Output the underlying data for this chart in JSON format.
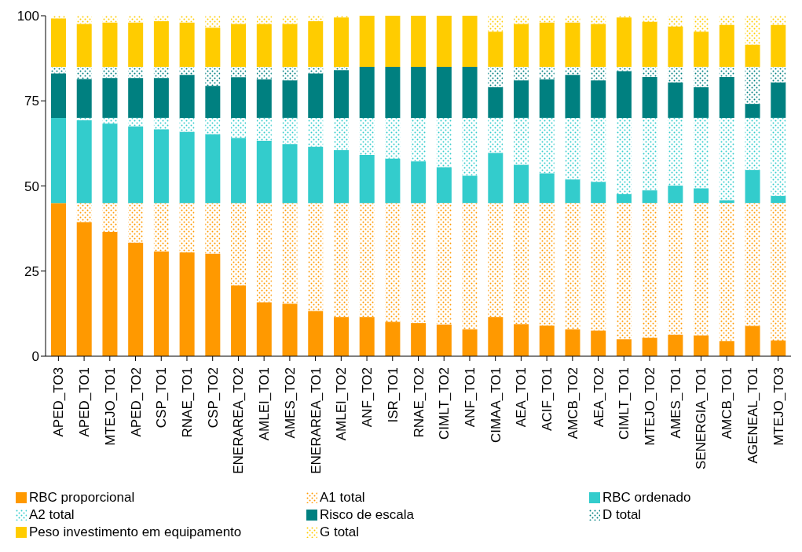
{
  "chart_data": {
    "type": "bar",
    "stacked": true,
    "categories": [
      "APED_TO3",
      "APED_TO1",
      "MTEJO_TO1",
      "APED_TO2",
      "CSP_TO1",
      "RNAE_TO1",
      "CSP_TO2",
      "ENERAREA_TO2",
      "AMLEI_TO1",
      "AMES_TO2",
      "ENERAREA_TO1",
      "AMLEI_TO2",
      "ANF_TO2",
      "ISR_TO1",
      "RNAE_TO2",
      "CIMLT_TO2",
      "ANF_TO1",
      "CIMAA_TO1",
      "AEA_TO1",
      "ACIF_TO1",
      "AMCB_TO2",
      "AEA_TO2",
      "CIMLT_TO1",
      "MTEJO_TO2",
      "AMES_TO1",
      "SENERGIA_TO1",
      "AMCB_TO1",
      "AGENEAL_TO1",
      "MTEJO_TO3"
    ],
    "series": [
      {
        "name": "RBC proporcional",
        "color": "#ff9900",
        "values": [
          45,
          39.4,
          36.5,
          33.3,
          30.8,
          30.5,
          30.1,
          20.8,
          15.8,
          15.4,
          13.3,
          11.5,
          11.5,
          10.1,
          9.7,
          9.3,
          7.9,
          11.5,
          9.4,
          9,
          7.9,
          7.5,
          5,
          5.4,
          6.3,
          6.1,
          4.4,
          8.9,
          4.6
        ]
      },
      {
        "name": "A1 total",
        "color": "#ff9900",
        "values": [
          0,
          5.6,
          8.5,
          11.7,
          14.2,
          14.5,
          14.9,
          24.2,
          29.2,
          29.6,
          31.7,
          33.5,
          33.5,
          34.9,
          35.3,
          35.7,
          37.1,
          33.5,
          35.6,
          36,
          37.1,
          37.5,
          40,
          39.6,
          38.7,
          38.9,
          40.6,
          36.1,
          40.4
        ]
      },
      {
        "name": "RBC ordenado",
        "color": "#33cccc",
        "values": [
          25,
          24.3,
          23.3,
          22.5,
          21.6,
          20.9,
          20.2,
          19.1,
          18.3,
          17.3,
          16.5,
          15.5,
          14.1,
          13,
          12.2,
          10.5,
          8,
          14.7,
          11.2,
          8.7,
          6.9,
          6.2,
          2.6,
          3.7,
          5.1,
          4.3,
          0.8,
          9.7,
          2.1
        ]
      },
      {
        "name": "A2 total",
        "color": "#33cccc",
        "values": [
          0,
          0.7,
          1.7,
          2.5,
          3.4,
          4.1,
          4.8,
          5.9,
          6.7,
          7.7,
          8.5,
          9.5,
          10.9,
          12,
          12.8,
          14.5,
          17,
          10.3,
          13.8,
          16.3,
          18.1,
          18.8,
          22.4,
          21.3,
          19.9,
          20.7,
          24.2,
          15.3,
          22.9
        ]
      },
      {
        "name": "Risco de escala",
        "color": "#008080",
        "values": [
          13,
          11.4,
          11.7,
          11.7,
          11.7,
          12.6,
          9.4,
          11.9,
          11.3,
          11,
          13,
          14,
          15,
          15,
          15,
          15,
          15,
          9,
          11,
          11.3,
          12.6,
          11,
          13.7,
          12,
          10.4,
          9,
          12,
          4.1,
          10.4
        ]
      },
      {
        "name": "D total",
        "color": "#008080",
        "values": [
          2,
          3.6,
          3.3,
          3.3,
          3.3,
          2.4,
          5.6,
          3.1,
          3.7,
          4,
          2,
          1,
          0,
          0,
          0,
          0,
          0,
          6,
          4,
          3.7,
          2.4,
          4,
          1.3,
          3,
          4.6,
          6,
          3,
          10.9,
          4.6
        ]
      },
      {
        "name": "Peso investimento em equipamento",
        "color": "#ffcc00",
        "values": [
          14.2,
          12.6,
          13,
          13,
          13.4,
          13,
          11.5,
          12.6,
          12.6,
          12.6,
          13.4,
          14.5,
          15,
          15,
          15,
          15,
          15,
          10.3,
          12.6,
          13,
          13,
          12.6,
          14.5,
          13.2,
          11.8,
          10.3,
          12.3,
          6.5,
          12.3
        ]
      },
      {
        "name": "G total",
        "color": "#ffcc00",
        "values": [
          0.8,
          2.4,
          2,
          2,
          1.6,
          2,
          3.5,
          2.4,
          2.4,
          2.4,
          1.6,
          0.5,
          0,
          0,
          0,
          0,
          0,
          4.7,
          2.4,
          2,
          2,
          2.4,
          0.5,
          1.8,
          3.2,
          4.7,
          2.7,
          8.5,
          2.7
        ]
      }
    ],
    "ylim": [
      0,
      100
    ],
    "yticks": [
      0,
      25,
      50,
      75,
      100
    ],
    "grid": false,
    "legend": "bottom"
  }
}
